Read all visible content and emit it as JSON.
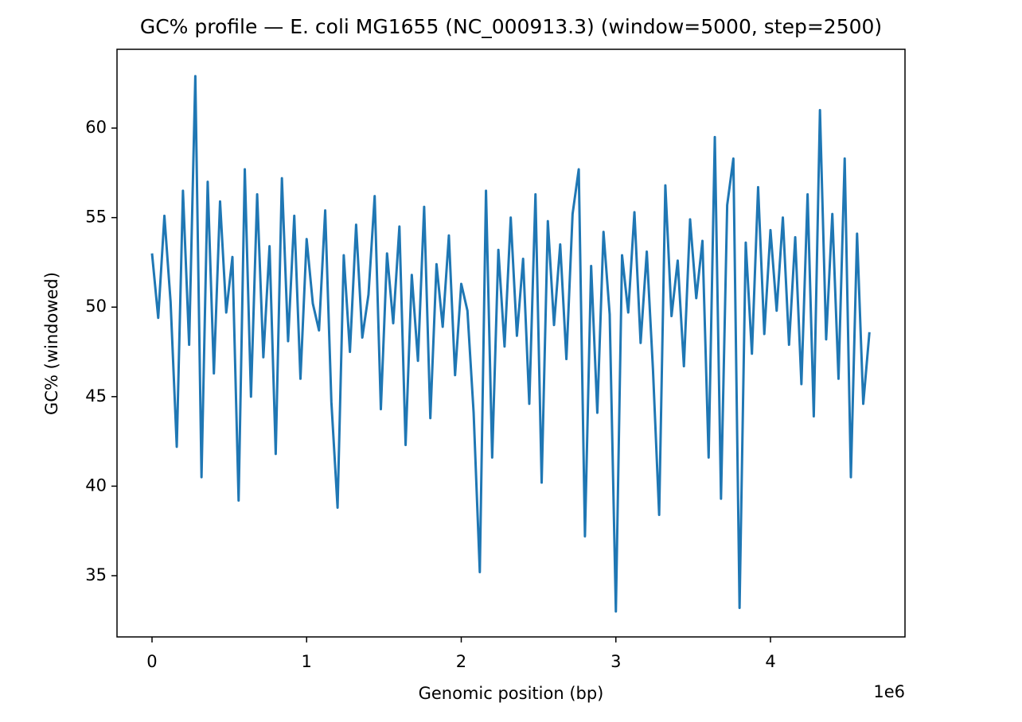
{
  "chart_data": {
    "type": "line",
    "title": "GC% profile — E. coli MG1655 (NC_000913.3) (window=5000, step=2500)",
    "xlabel": "Genomic position (bp)",
    "ylabel": "GC% (windowed)",
    "x_offset_label": "1e6",
    "color": "#1f77b4",
    "xlim": [
      -226500,
      4870000
    ],
    "ylim": [
      31.58,
      64.4
    ],
    "xticks": [
      0,
      {
        "value": 1000000,
        "label": "1"
      },
      {
        "value": 2000000,
        "label": "2"
      },
      {
        "value": 3000000,
        "label": "3"
      },
      {
        "value": 4000000,
        "label": "4"
      }
    ],
    "yticks": [
      35,
      40,
      45,
      50,
      55,
      60
    ],
    "x": [
      0,
      40000,
      80000,
      120000,
      160000,
      200000,
      240000,
      280000,
      320000,
      360000,
      400000,
      440000,
      480000,
      520000,
      560000,
      600000,
      640000,
      680000,
      720000,
      760000,
      800000,
      840000,
      880000,
      920000,
      960000,
      1000000,
      1040000,
      1080000,
      1120000,
      1160000,
      1200000,
      1240000,
      1280000,
      1320000,
      1360000,
      1400000,
      1440000,
      1480000,
      1520000,
      1560000,
      1600000,
      1640000,
      1680000,
      1720000,
      1760000,
      1800000,
      1840000,
      1880000,
      1920000,
      1960000,
      2000000,
      2040000,
      2080000,
      2120000,
      2160000,
      2200000,
      2240000,
      2280000,
      2320000,
      2360000,
      2400000,
      2440000,
      2480000,
      2520000,
      2560000,
      2600000,
      2640000,
      2680000,
      2720000,
      2760000,
      2800000,
      2840000,
      2880000,
      2920000,
      2960000,
      3000000,
      3040000,
      3080000,
      3120000,
      3160000,
      3200000,
      3240000,
      3280000,
      3320000,
      3360000,
      3400000,
      3440000,
      3480000,
      3520000,
      3560000,
      3600000,
      3640000,
      3680000,
      3720000,
      3760000,
      3800000,
      3840000,
      3880000,
      3920000,
      3960000,
      4000000,
      4040000,
      4080000,
      4120000,
      4160000,
      4200000,
      4240000,
      4280000,
      4320000,
      4360000,
      4400000,
      4440000,
      4480000,
      4520000,
      4560000,
      4600000,
      4640000
    ],
    "values": [
      53.0,
      49.4,
      55.1,
      50.3,
      42.2,
      56.5,
      47.9,
      62.9,
      40.5,
      57.0,
      46.3,
      55.9,
      49.7,
      52.8,
      39.2,
      57.7,
      45.0,
      56.3,
      47.2,
      53.4,
      41.8,
      57.2,
      48.1,
      55.1,
      46.0,
      53.8,
      50.2,
      48.7,
      55.4,
      44.7,
      38.8,
      52.9,
      47.5,
      54.6,
      48.3,
      50.7,
      56.2,
      44.3,
      53.0,
      49.1,
      54.5,
      42.3,
      51.8,
      47.0,
      55.6,
      43.8,
      52.4,
      48.9,
      54.0,
      46.2,
      51.3,
      49.8,
      44.1,
      35.2,
      56.5,
      41.6,
      53.2,
      47.8,
      55.0,
      48.4,
      52.7,
      44.6,
      56.3,
      40.2,
      54.8,
      49.0,
      53.5,
      47.1,
      55.2,
      57.7,
      37.2,
      52.3,
      44.1,
      54.2,
      49.6,
      33.0,
      52.9,
      49.7,
      55.3,
      48.0,
      53.1,
      46.5,
      38.4,
      56.8,
      49.5,
      52.6,
      46.7,
      54.9,
      50.5,
      53.7,
      41.6,
      59.5,
      39.3,
      55.7,
      58.3,
      33.2,
      53.6,
      47.4,
      56.7,
      48.5,
      54.3,
      49.8,
      55.0,
      47.9,
      53.9,
      45.7,
      56.3,
      43.9,
      61.0,
      48.2,
      55.2,
      46.0,
      58.3,
      40.5,
      54.1,
      44.6,
      48.6
    ]
  }
}
